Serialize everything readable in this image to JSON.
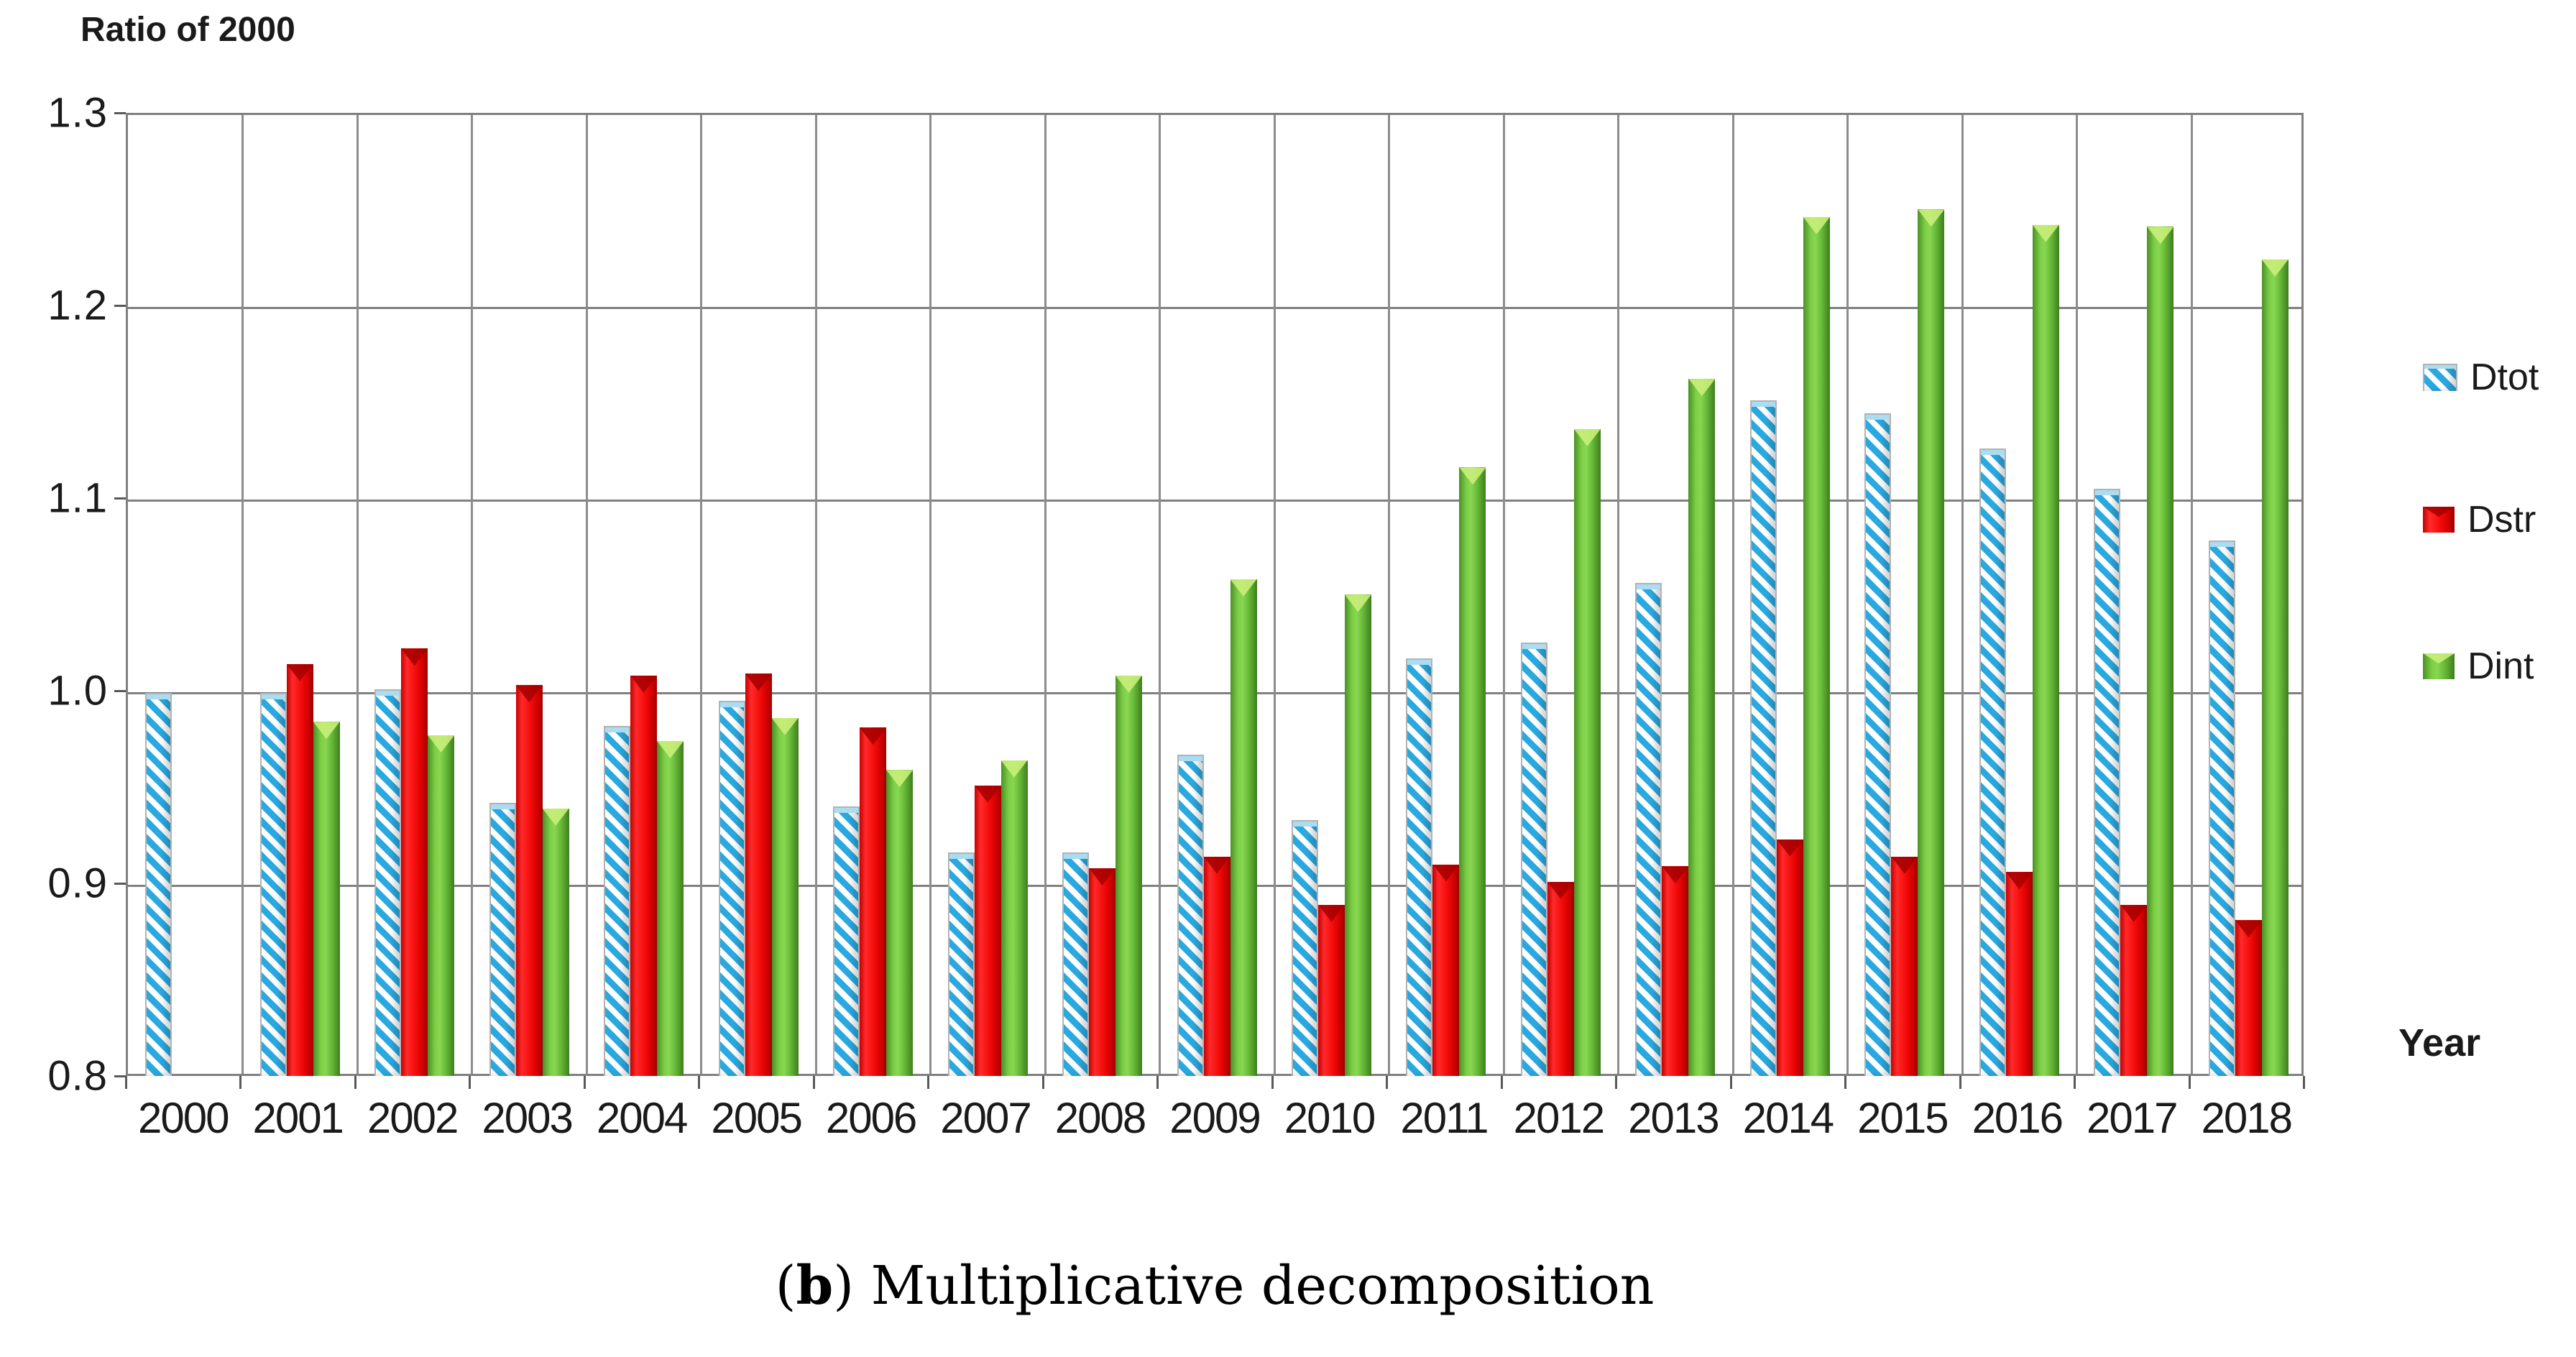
{
  "figure": {
    "caption": {
      "prefix": "(",
      "bold_part": "b",
      "suffix": ") Multiplicative decomposition"
    }
  },
  "axis": {
    "y_title": "Ratio of 2000",
    "x_title": "Year"
  },
  "legend": {
    "position": "right",
    "items": [
      {
        "label": "Dtot",
        "swatch": "blue-diagonal-stripes"
      },
      {
        "label": "Dstr",
        "swatch": "red-solid"
      },
      {
        "label": "Dint",
        "swatch": "green-solid"
      }
    ]
  },
  "colors": {
    "dtot_stripe": "#2AA9E0",
    "dstr_red": "#F40B0B",
    "dint_green": "#6EC53E",
    "gridline": "#808080",
    "text": "#1A1A1A",
    "background": "#FFFFFF"
  },
  "chart_data": {
    "type": "bar",
    "title": "Ratio of 2000",
    "xlabel": "Year",
    "ylabel": "Ratio of 2000",
    "ylim": [
      0.8,
      1.3
    ],
    "yticks": [
      "1.3",
      "1.2",
      "1.1",
      "1.0",
      "0.9",
      "0.8"
    ],
    "grid": "horizontal gridlines every 0.1 plus vertical category-boundary lines",
    "legend_position": "right",
    "categories": [
      "2000",
      "2001",
      "2002",
      "2003",
      "2004",
      "2005",
      "2006",
      "2007",
      "2008",
      "2009",
      "2010",
      "2011",
      "2012",
      "2013",
      "2014",
      "2015",
      "2016",
      "2017",
      "2018"
    ],
    "series": [
      {
        "name": "Dtot",
        "style": "blue diagonal hatched",
        "values": [
          1.0,
          1.0,
          1.002,
          0.943,
          0.983,
          0.996,
          0.941,
          0.917,
          0.917,
          0.968,
          0.934,
          1.018,
          1.026,
          1.057,
          1.152,
          1.145,
          1.127,
          1.106,
          1.079
        ]
      },
      {
        "name": "Dstr",
        "style": "solid red",
        "values": [
          null,
          1.015,
          1.023,
          1.004,
          1.009,
          1.01,
          0.982,
          0.952,
          0.909,
          0.915,
          0.89,
          0.911,
          0.902,
          0.91,
          0.924,
          0.915,
          0.907,
          0.89,
          0.882
        ]
      },
      {
        "name": "Dint",
        "style": "solid green",
        "values": [
          null,
          0.985,
          0.978,
          0.94,
          0.975,
          0.987,
          0.96,
          0.965,
          1.009,
          1.059,
          1.051,
          1.117,
          1.137,
          1.163,
          1.247,
          1.251,
          1.243,
          1.242,
          1.225
        ]
      }
    ]
  }
}
